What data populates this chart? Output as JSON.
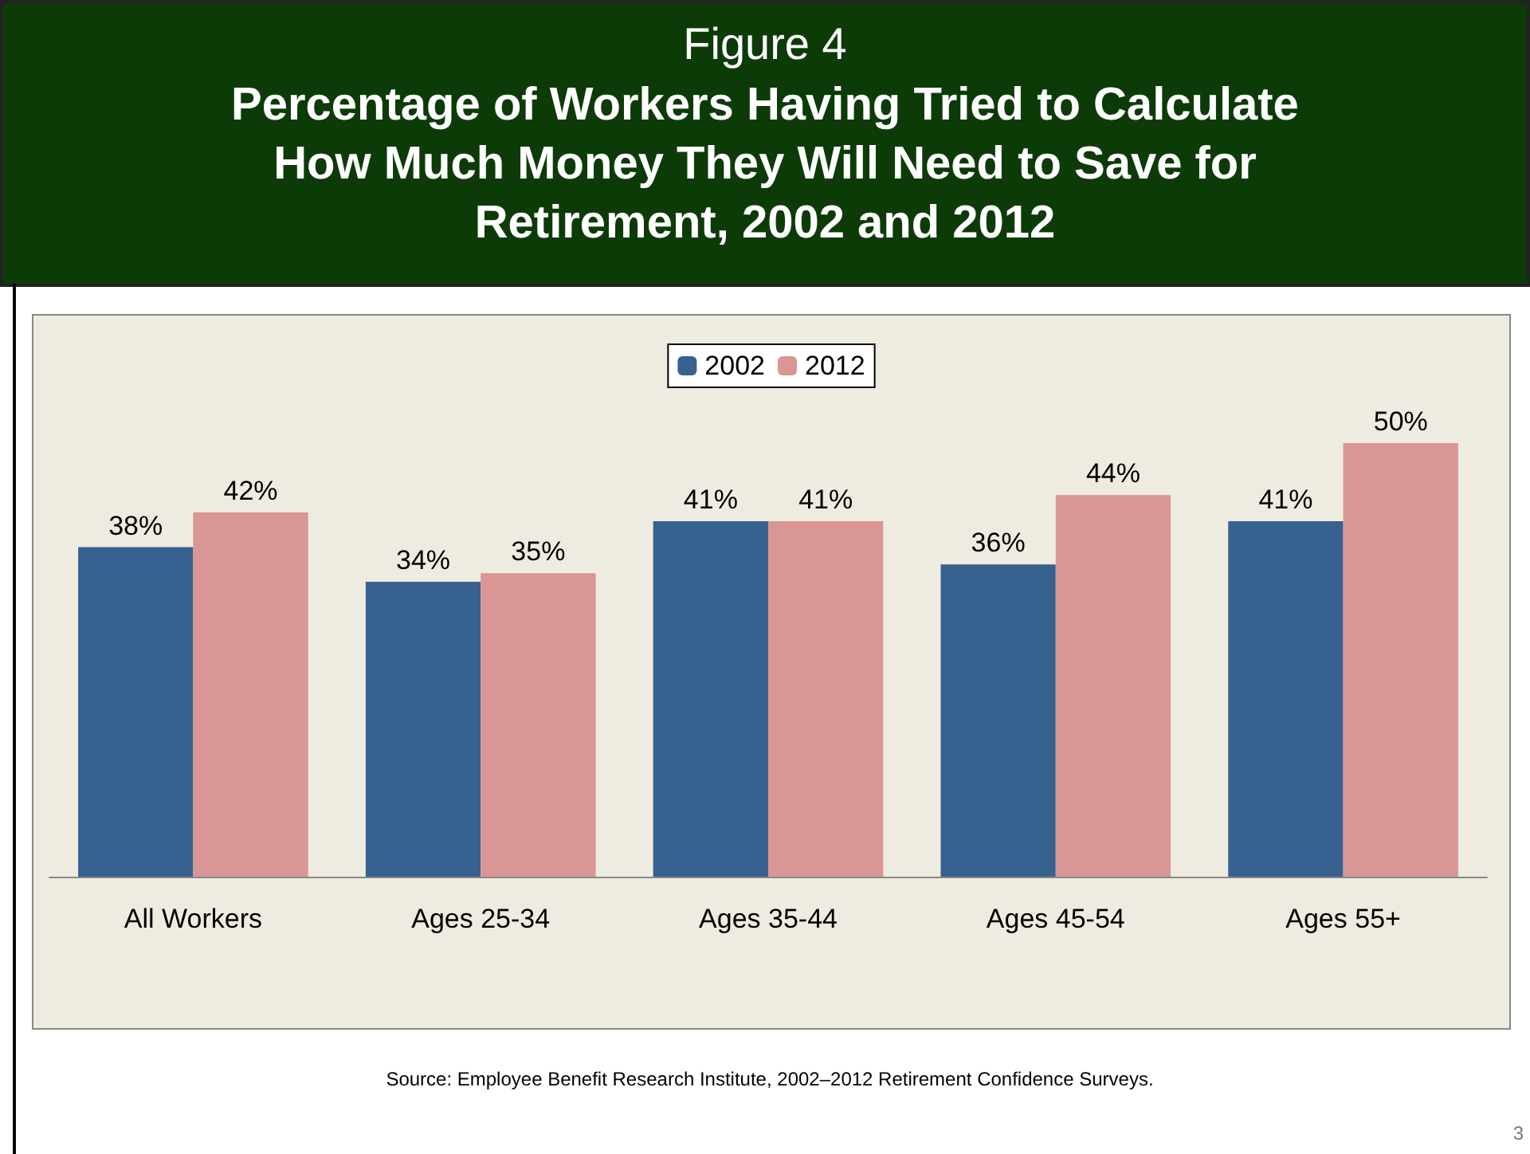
{
  "chart_data": {
    "type": "bar",
    "title": "Figure 4",
    "subtitle": "Percentage of Workers Having Tried to Calculate How Much Money They Will Need to Save for Retirement, 2002 and 2012",
    "categories": [
      "All Workers",
      "Ages 25-34",
      "Ages 35-44",
      "Ages 45-54",
      "Ages 55+"
    ],
    "series": [
      {
        "name": "2002",
        "color": "#37618f",
        "values": [
          38,
          34,
          41,
          36,
          41
        ],
        "value_labels": [
          "38%",
          "34%",
          "41%",
          "36%",
          "41%"
        ]
      },
      {
        "name": "2012",
        "color": "#d99694",
        "values": [
          42,
          35,
          41,
          44,
          50
        ],
        "value_labels": [
          "42%",
          "35%",
          "41%",
          "44%",
          "50%"
        ]
      }
    ],
    "legend": "top",
    "annotations": [
      "Source:  Employee Benefit Research Institute, 2002–2012 Retirement Confidence Surveys.",
      "3"
    ]
  }
}
